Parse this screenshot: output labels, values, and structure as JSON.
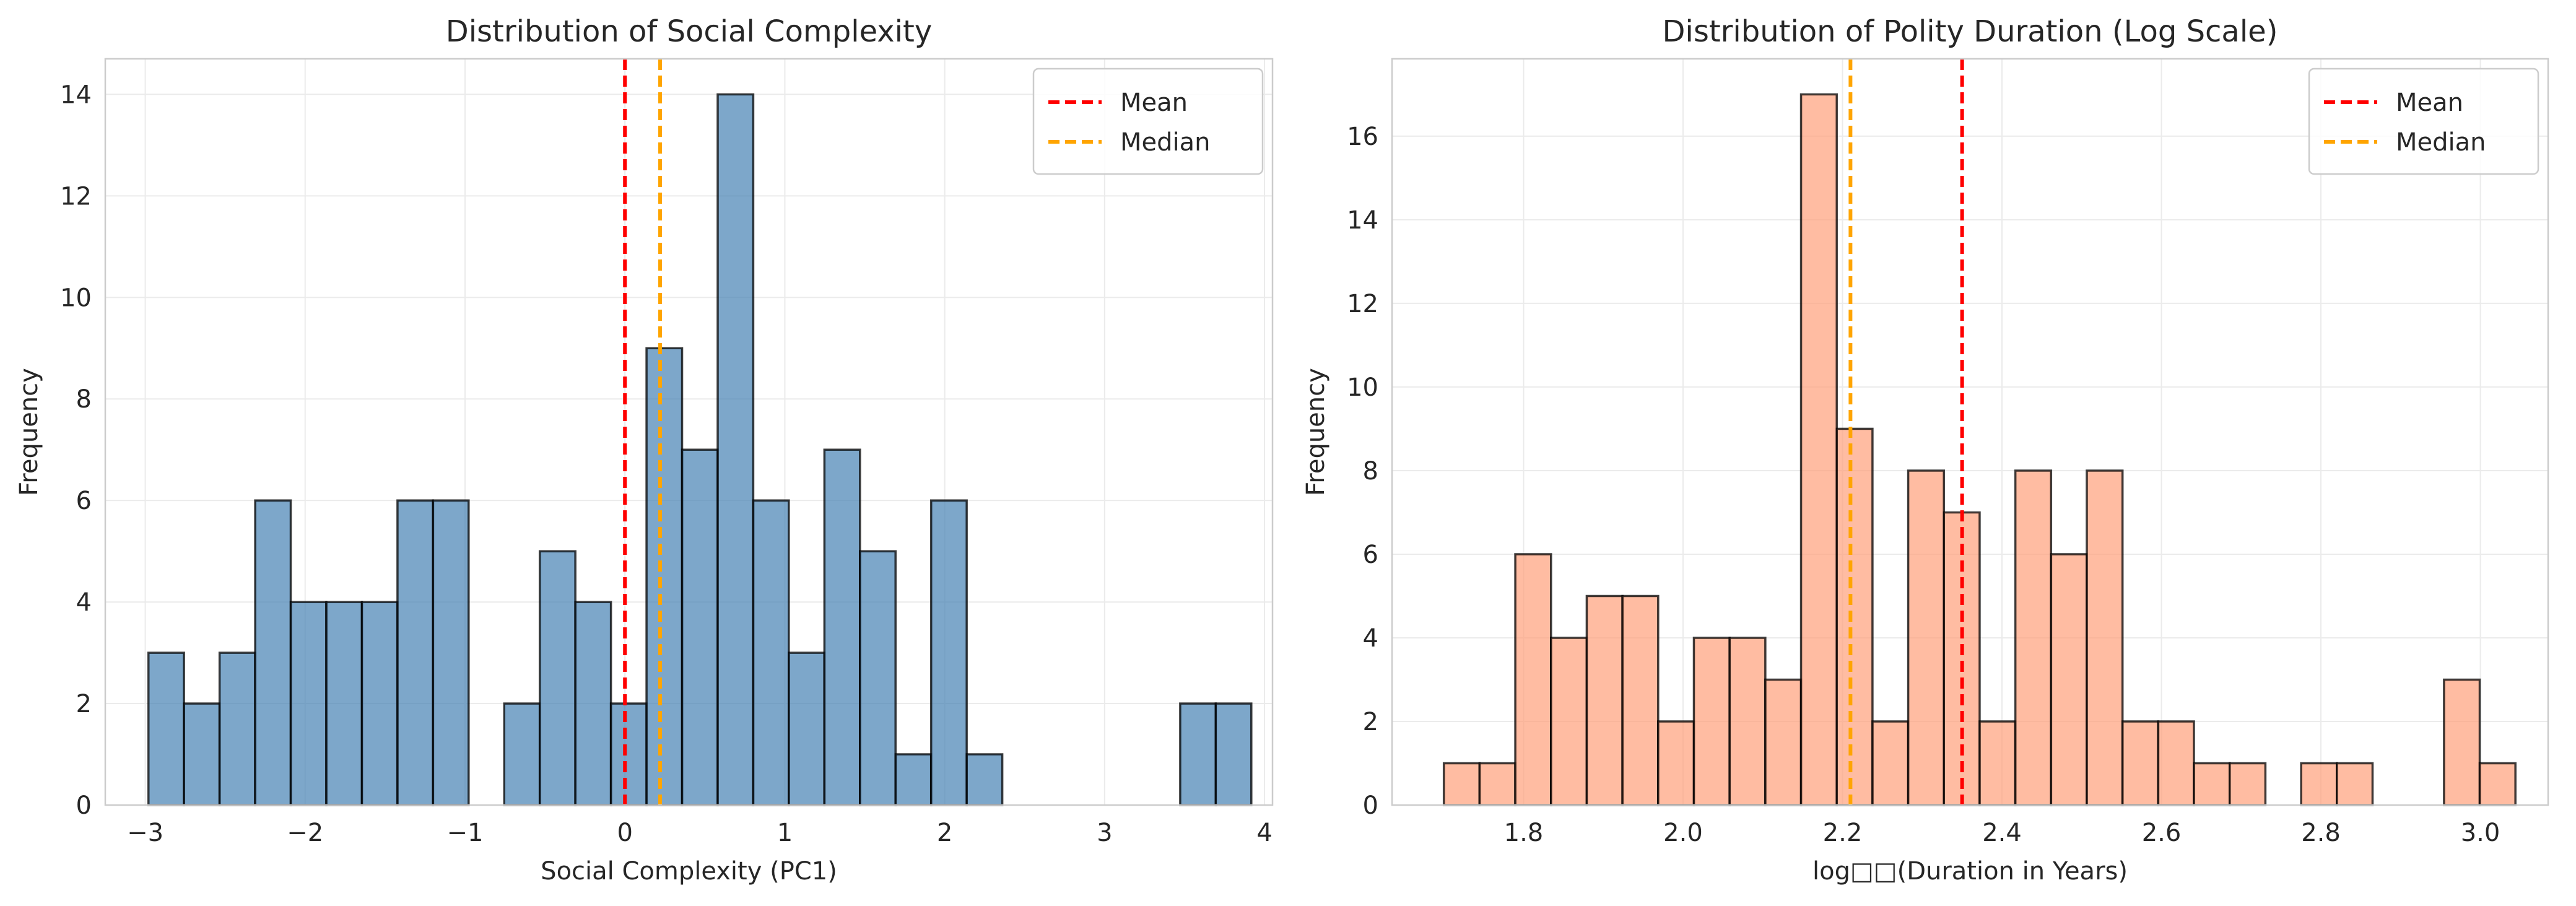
{
  "chart_data": [
    {
      "type": "bar",
      "title": "Distribution of Social Complexity",
      "xlabel": "Social Complexity (PC1)",
      "ylabel": "Frequency",
      "xlim": [
        -3.25,
        4.05
      ],
      "ylim": [
        0,
        14.7
      ],
      "xticks": [
        -3,
        -2,
        -1,
        0,
        1,
        2,
        3,
        4
      ],
      "xtick_labels": [
        "−3",
        "−2",
        "−1",
        "0",
        "1",
        "2",
        "3",
        "4"
      ],
      "yticks": [
        0,
        2,
        4,
        6,
        8,
        10,
        12,
        14
      ],
      "ytick_labels": [
        "0",
        "2",
        "4",
        "6",
        "8",
        "10",
        "12",
        "14"
      ],
      "bin_start": -2.98,
      "bin_width": 0.2225,
      "values": [
        3,
        2,
        3,
        6,
        4,
        4,
        4,
        6,
        6,
        0,
        2,
        5,
        4,
        2,
        9,
        7,
        14,
        6,
        3,
        7,
        5,
        1,
        6,
        1,
        0,
        0,
        0,
        0,
        0,
        2,
        2
      ],
      "bar_color": "#4682b4",
      "mean": 0.0,
      "median": 0.22,
      "legend": {
        "position": "top-right",
        "entries": [
          {
            "label": "Mean",
            "color": "#ff0000"
          },
          {
            "label": "Median",
            "color": "#ffa500"
          }
        ]
      },
      "grid": true
    },
    {
      "type": "bar",
      "title": "Distribution of Polity Duration (Log Scale)",
      "xlabel": "log□□(Duration in Years)",
      "ylabel": "Frequency",
      "xlim": [
        1.635,
        3.085
      ],
      "ylim": [
        0,
        17.85
      ],
      "xticks": [
        1.8,
        2.0,
        2.2,
        2.4,
        2.6,
        2.8,
        3.0
      ],
      "xtick_labels": [
        "1.8",
        "2.0",
        "2.2",
        "2.4",
        "2.6",
        "2.8",
        "3.0"
      ],
      "yticks": [
        0,
        2,
        4,
        6,
        8,
        10,
        12,
        14,
        16
      ],
      "ytick_labels": [
        "0",
        "2",
        "4",
        "6",
        "8",
        "10",
        "12",
        "14",
        "16"
      ],
      "bin_start": 1.7,
      "bin_width": 0.0448,
      "values": [
        1,
        1,
        6,
        4,
        5,
        5,
        2,
        4,
        4,
        3,
        17,
        9,
        2,
        8,
        7,
        2,
        8,
        6,
        8,
        2,
        2,
        1,
        1,
        0,
        1,
        1,
        0,
        0,
        3,
        1
      ],
      "bar_color": "#ffa07a",
      "mean": 2.35,
      "median": 2.21,
      "legend": {
        "position": "top-right",
        "entries": [
          {
            "label": "Mean",
            "color": "#ff0000"
          },
          {
            "label": "Median",
            "color": "#ffa500"
          }
        ]
      },
      "grid": true
    }
  ]
}
